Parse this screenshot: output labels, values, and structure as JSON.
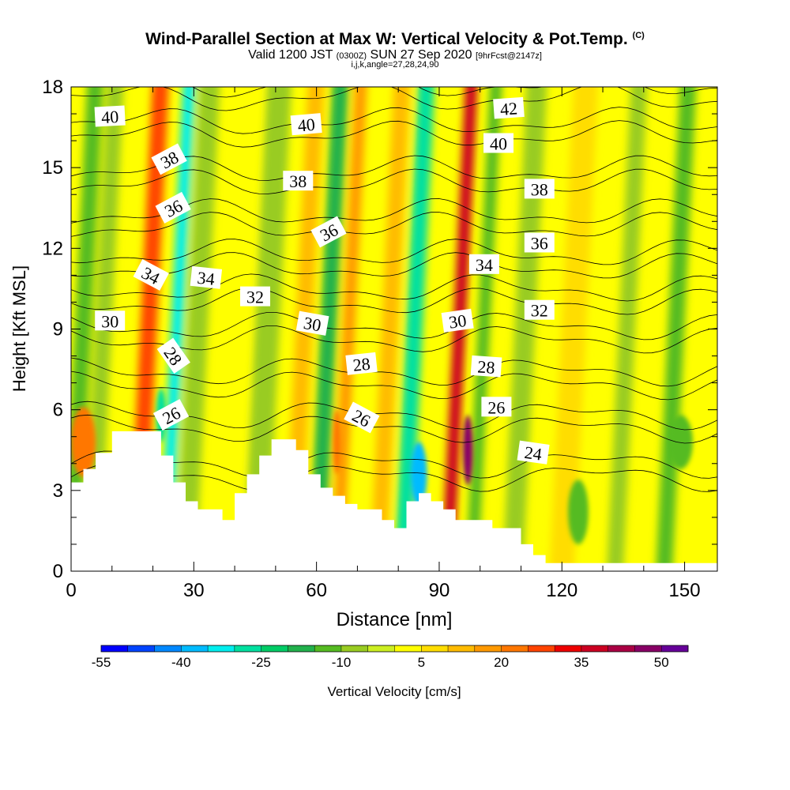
{
  "titles": {
    "main": "Wind-Parallel Section at Max W: Vertical Velocity & Pot.Temp.",
    "copyright": "(C)",
    "valid_prefix": "Valid 1200 JST",
    "valid_z": "(0300Z)",
    "valid_date": "SUN 27 Sep 2020",
    "forecast": "[9hrFcst@2147z]",
    "indices": "i,j,k,angle=27,28,24,90"
  },
  "chart_data": {
    "type": "heatmap",
    "xlabel": "Distance [nm]",
    "ylabel": "Height [Kft MSL]",
    "xlim": [
      0,
      158
    ],
    "ylim": [
      0,
      18
    ],
    "x_ticks": [
      0,
      30,
      60,
      90,
      120,
      150
    ],
    "y_ticks": [
      0,
      3,
      6,
      9,
      12,
      15,
      18
    ],
    "colorbar": {
      "label": "Vertical Velocity [cm/s]",
      "min": -55,
      "step": 5,
      "tick_labels": [
        "-55",
        "-40",
        "-25",
        "-10",
        "5",
        "20",
        "35",
        "50"
      ],
      "colors": [
        "#0000ff",
        "#0044ff",
        "#0088ff",
        "#00bbff",
        "#00eeee",
        "#00e0a0",
        "#00cc66",
        "#22b14c",
        "#55bb22",
        "#99cc22",
        "#ccee22",
        "#ffff00",
        "#ffdd00",
        "#ffbb00",
        "#ff9900",
        "#ff7700",
        "#ff4400",
        "#ee0000",
        "#cc0022",
        "#aa0044",
        "#880066",
        "#660099"
      ]
    },
    "columns": [
      {
        "x": 3,
        "w": 4,
        "value": -12
      },
      {
        "x": 8,
        "w": 4,
        "value": -7
      },
      {
        "x": 19,
        "w": 4,
        "value": 28
      },
      {
        "x": 26,
        "w": 3,
        "value": -32
      },
      {
        "x": 31,
        "w": 5,
        "value": -6
      },
      {
        "x": 41,
        "w": 6,
        "value": 3
      },
      {
        "x": 48,
        "w": 6,
        "value": -8
      },
      {
        "x": 57,
        "w": 4,
        "value": 13
      },
      {
        "x": 63,
        "w": 4,
        "value": -17
      },
      {
        "x": 68,
        "w": 3,
        "value": 18
      },
      {
        "x": 78,
        "w": 4,
        "value": 10
      },
      {
        "x": 84,
        "w": 4,
        "value": -28
      },
      {
        "x": 95,
        "w": 3,
        "value": 38
      },
      {
        "x": 101,
        "w": 3,
        "value": -13
      },
      {
        "x": 111,
        "w": 5,
        "value": -8
      },
      {
        "x": 123,
        "w": 6,
        "value": 8
      },
      {
        "x": 136,
        "w": 4,
        "value": -9
      },
      {
        "x": 148,
        "w": 4,
        "value": -14
      }
    ],
    "blobs": [
      {
        "x": 3,
        "y": 4.8,
        "rx": 3,
        "ry": 1.3,
        "value": 20
      },
      {
        "x": 22,
        "y": 5.8,
        "rx": 1.2,
        "ry": 1.0,
        "value": -30
      },
      {
        "x": 85,
        "y": 3.6,
        "rx": 2,
        "ry": 1.2,
        "value": -40
      },
      {
        "x": 97,
        "y": 4.5,
        "rx": 1.2,
        "ry": 1.3,
        "value": 45
      },
      {
        "x": 149,
        "y": 4.8,
        "rx": 3,
        "ry": 1.0,
        "value": -15
      },
      {
        "x": 124,
        "y": 2.2,
        "rx": 2.5,
        "ry": 1.2,
        "value": -14
      },
      {
        "x": 65,
        "y": 4.8,
        "rx": 1,
        "ry": 1.2,
        "value": 24
      }
    ],
    "terrain": [
      [
        0,
        3.3
      ],
      [
        3,
        3.3
      ],
      [
        3,
        3.8
      ],
      [
        6,
        3.8
      ],
      [
        6,
        4.4
      ],
      [
        10,
        4.4
      ],
      [
        10,
        5.2
      ],
      [
        22,
        5.2
      ],
      [
        22,
        4.3
      ],
      [
        25,
        4.3
      ],
      [
        25,
        3.3
      ],
      [
        28,
        3.3
      ],
      [
        28,
        2.6
      ],
      [
        31,
        2.6
      ],
      [
        31,
        2.3
      ],
      [
        37,
        2.3
      ],
      [
        37,
        1.9
      ],
      [
        40,
        1.9
      ],
      [
        40,
        2.9
      ],
      [
        43,
        2.9
      ],
      [
        43,
        3.6
      ],
      [
        46,
        3.6
      ],
      [
        46,
        4.3
      ],
      [
        49,
        4.3
      ],
      [
        49,
        4.9
      ],
      [
        55,
        4.9
      ],
      [
        55,
        4.5
      ],
      [
        58,
        4.5
      ],
      [
        58,
        3.6
      ],
      [
        61,
        3.6
      ],
      [
        61,
        3.1
      ],
      [
        64,
        3.1
      ],
      [
        64,
        2.8
      ],
      [
        67,
        2.8
      ],
      [
        67,
        2.5
      ],
      [
        70,
        2.5
      ],
      [
        70,
        2.3
      ],
      [
        76,
        2.3
      ],
      [
        76,
        1.9
      ],
      [
        79,
        1.9
      ],
      [
        79,
        1.6
      ],
      [
        82,
        1.6
      ],
      [
        82,
        2.6
      ],
      [
        85,
        2.6
      ],
      [
        85,
        2.9
      ],
      [
        88,
        2.9
      ],
      [
        88,
        2.6
      ],
      [
        91,
        2.6
      ],
      [
        91,
        2.3
      ],
      [
        94,
        2.3
      ],
      [
        94,
        1.9
      ],
      [
        103,
        1.9
      ],
      [
        103,
        1.6
      ],
      [
        110,
        1.6
      ],
      [
        110,
        1.0
      ],
      [
        113,
        1.0
      ],
      [
        113,
        0.6
      ],
      [
        116,
        0.6
      ],
      [
        116,
        0.3
      ],
      [
        158,
        0.3
      ],
      [
        158,
        0
      ]
    ],
    "theta_lines": [
      {
        "value": 24,
        "base": 3.5
      },
      {
        "value": 26,
        "base": 5.3
      },
      {
        "value": 28,
        "base": 6.9
      },
      {
        "value": 30,
        "base": 8.6
      },
      {
        "value": 32,
        "base": 10.0
      },
      {
        "value": 34,
        "base": 11.3
      },
      {
        "value": 36,
        "base": 12.8
      },
      {
        "value": 38,
        "base": 14.4
      },
      {
        "value": 40,
        "base": 16.2
      },
      {
        "value": 42,
        "base": 17.6
      }
    ],
    "contour_labels": [
      {
        "text": "40",
        "x": 9.5,
        "y": 16.9,
        "angle": 3
      },
      {
        "text": "38",
        "x": 24,
        "y": 15.3,
        "angle": 28
      },
      {
        "text": "36",
        "x": 25,
        "y": 13.5,
        "angle": 28
      },
      {
        "text": "34",
        "x": 19.5,
        "y": 11.0,
        "angle": -28
      },
      {
        "text": "34",
        "x": 33,
        "y": 10.9,
        "angle": -6
      },
      {
        "text": "32",
        "x": 45,
        "y": 10.2,
        "angle": 0
      },
      {
        "text": "30",
        "x": 9.5,
        "y": 9.3,
        "angle": 0
      },
      {
        "text": "28",
        "x": 25,
        "y": 8.0,
        "angle": -55
      },
      {
        "text": "26",
        "x": 24.5,
        "y": 5.8,
        "angle": 28
      },
      {
        "text": "40",
        "x": 57.5,
        "y": 16.6,
        "angle": 5
      },
      {
        "text": "38",
        "x": 55.5,
        "y": 14.5,
        "angle": 0
      },
      {
        "text": "36",
        "x": 63,
        "y": 12.6,
        "angle": 28
      },
      {
        "text": "30",
        "x": 59,
        "y": 9.2,
        "angle": -10
      },
      {
        "text": "28",
        "x": 71,
        "y": 7.7,
        "angle": 6
      },
      {
        "text": "26",
        "x": 71,
        "y": 5.7,
        "angle": -28
      },
      {
        "text": "42",
        "x": 107,
        "y": 17.2,
        "angle": 4
      },
      {
        "text": "40",
        "x": 104.5,
        "y": 15.9,
        "angle": 0
      },
      {
        "text": "38",
        "x": 114.5,
        "y": 14.2,
        "angle": 0
      },
      {
        "text": "36",
        "x": 114.5,
        "y": 12.2,
        "angle": 0
      },
      {
        "text": "34",
        "x": 101,
        "y": 11.4,
        "angle": 0
      },
      {
        "text": "32",
        "x": 114.5,
        "y": 9.7,
        "angle": 0
      },
      {
        "text": "30",
        "x": 94.5,
        "y": 9.3,
        "angle": 8
      },
      {
        "text": "28",
        "x": 101.5,
        "y": 7.6,
        "angle": -4
      },
      {
        "text": "26",
        "x": 104,
        "y": 6.1,
        "angle": 0
      },
      {
        "text": "24",
        "x": 113,
        "y": 4.4,
        "angle": -8
      }
    ]
  }
}
